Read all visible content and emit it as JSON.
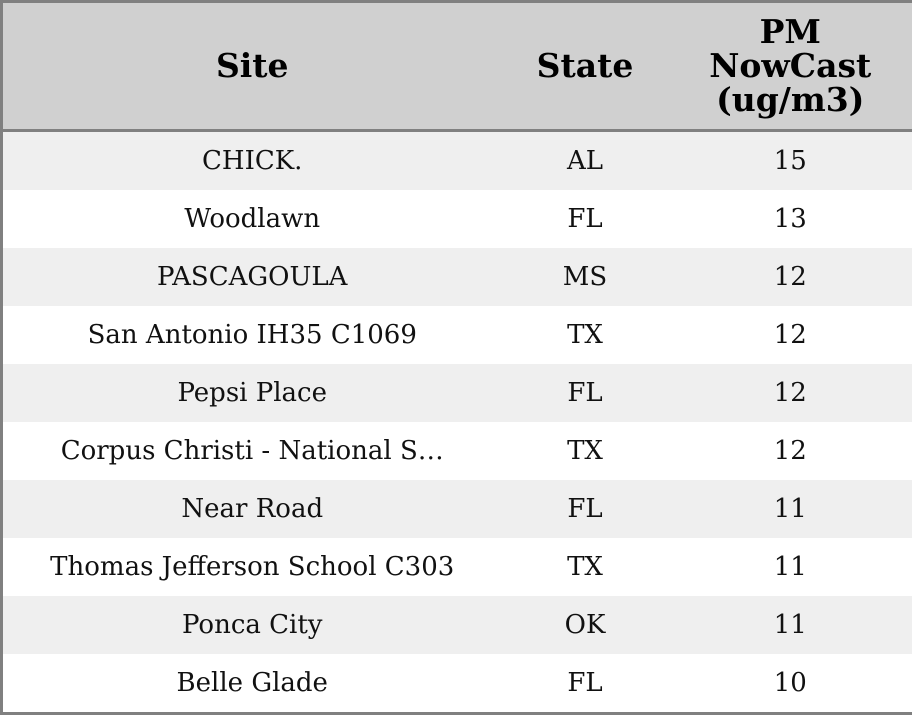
{
  "table": {
    "header": [
      "Site",
      "State",
      "PM NowCast (ug/m3)"
    ],
    "rows": [
      [
        "CHICK.",
        "AL",
        15
      ],
      [
        "Woodlawn",
        "FL",
        13
      ],
      [
        "PASCAGOULA",
        "MS",
        12
      ],
      [
        "San Antonio IH35 C1069",
        "TX",
        12
      ],
      [
        "Pepsi Place",
        "FL",
        12
      ],
      [
        "Corpus Christi - National S…",
        "TX",
        12
      ],
      [
        "Near Road",
        "FL",
        11
      ],
      [
        "Thomas Jefferson School C303",
        "TX",
        11
      ],
      [
        "Ponca City",
        "OK",
        11
      ],
      [
        "Belle Glade",
        "FL",
        10
      ]
    ]
  }
}
